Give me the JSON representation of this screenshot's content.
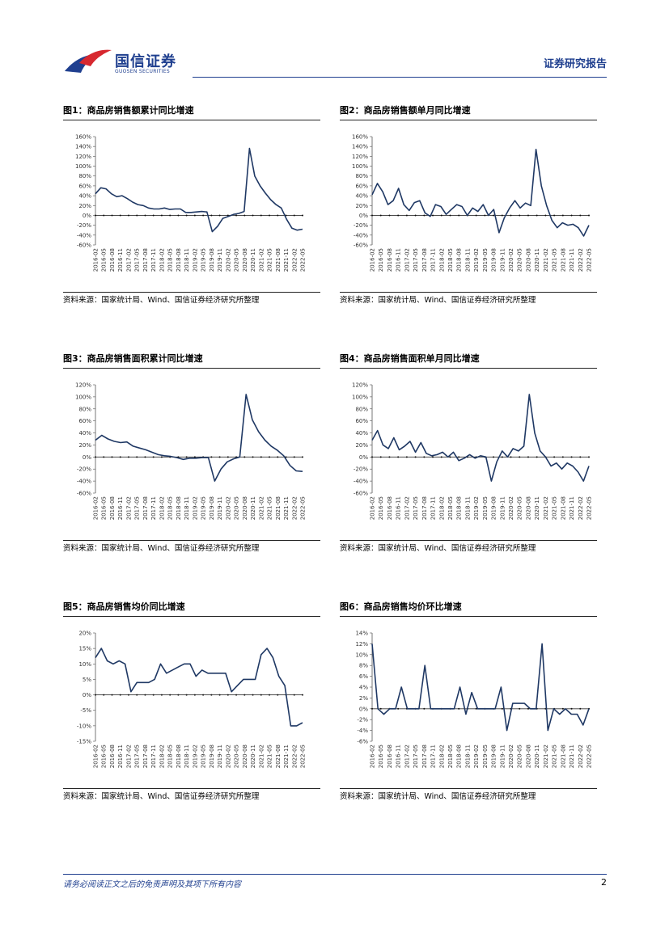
{
  "header": {
    "logo_cn": "国信证券",
    "logo_en": "GUOSEN SECURITIES",
    "report_tag": "证券研究报告"
  },
  "figures": [
    {
      "title": "图1：商品房销售额累计同比增速",
      "source": "资料来源：国家统计局、Wind、国信证券经济研究所整理"
    },
    {
      "title": "图2：商品房销售额单月同比增速",
      "source": "资料来源：国家统计局、Wind、国信证券经济研究所整理"
    },
    {
      "title": "图3：商品房销售面积累计同比增速",
      "source": "资料来源：国家统计局、Wind、国信证券经济研究所整理"
    },
    {
      "title": "图4：商品房销售面积单月同比增速",
      "source": "资料来源：国家统计局、Wind、国信证券经济研究所整理"
    },
    {
      "title": "图5：商品房销售均价同比增速",
      "source": "资料来源：国家统计局、Wind、国信证券经济研究所整理"
    },
    {
      "title": "图6：商品房销售均价环比增速",
      "source": "资料来源：国家统计局、Wind、国信证券经济研究所整理"
    }
  ],
  "footer": {
    "disclaimer": "请务必阅读正文之后的免责声明及其项下所有内容",
    "page": "2"
  },
  "colors": {
    "line": "#1f3864",
    "brand_blue": "#1f3f8f",
    "brand_red": "#d7282f"
  },
  "chart_data": [
    {
      "type": "line",
      "title": "图1：商品房销售额累计同比增速",
      "ylim": [
        -60,
        160
      ],
      "yticks": [
        -60,
        -40,
        -20,
        0,
        20,
        40,
        60,
        80,
        100,
        120,
        140,
        160
      ],
      "yunit": "%",
      "x_labels": [
        "2016-02",
        "2016-05",
        "2016-08",
        "2016-11",
        "2017-02",
        "2017-05",
        "2017-08",
        "2017-11",
        "2018-02",
        "2018-05",
        "2018-08",
        "2018-11",
        "2019-02",
        "2019-05",
        "2019-08",
        "2019-11",
        "2020-02",
        "2020-05",
        "2020-08",
        "2020-11",
        "2021-02",
        "2021-05",
        "2021-08",
        "2021-11",
        "2022-02",
        "2022-05"
      ],
      "series": [
        {
          "name": "销售额累计同比",
          "values": [
            44,
            56,
            54,
            44,
            38,
            40,
            34,
            27,
            22,
            20,
            15,
            13,
            13,
            15,
            12,
            13,
            13,
            6,
            6,
            7,
            8,
            7,
            -33,
            -22,
            -6,
            -2,
            2,
            4,
            8,
            136,
            80,
            60,
            45,
            32,
            22,
            15,
            -8,
            -26,
            -30,
            -28
          ]
        }
      ]
    },
    {
      "type": "line",
      "title": "图2：商品房销售额单月同比增速",
      "ylim": [
        -60,
        160
      ],
      "yticks": [
        -60,
        -40,
        -20,
        0,
        20,
        40,
        60,
        80,
        100,
        120,
        140,
        160
      ],
      "yunit": "%",
      "x_labels": [
        "2016-02",
        "2016-05",
        "2016-08",
        "2016-11",
        "2017-02",
        "2017-05",
        "2017-08",
        "2017-11",
        "2018-02",
        "2018-05",
        "2018-08",
        "2018-11",
        "2019-02",
        "2019-05",
        "2019-08",
        "2019-11",
        "2020-02",
        "2020-05",
        "2020-08",
        "2020-11",
        "2021-02",
        "2021-05",
        "2021-08",
        "2021-11",
        "2022-02",
        "2022-05"
      ],
      "series": [
        {
          "name": "销售额单月同比",
          "values": [
            42,
            65,
            48,
            22,
            30,
            55,
            22,
            10,
            26,
            30,
            5,
            -2,
            22,
            18,
            2,
            12,
            22,
            18,
            0,
            15,
            8,
            22,
            0,
            12,
            -35,
            -5,
            15,
            30,
            15,
            25,
            20,
            134,
            60,
            20,
            -10,
            -25,
            -15,
            -20,
            -18,
            -25,
            -42,
            -20
          ]
        }
      ]
    },
    {
      "type": "line",
      "title": "图3：商品房销售面积累计同比增速",
      "ylim": [
        -60,
        120
      ],
      "yticks": [
        -60,
        -40,
        -20,
        0,
        20,
        40,
        60,
        80,
        100,
        120
      ],
      "yunit": "%",
      "x_labels": [
        "2016-02",
        "2016-05",
        "2016-08",
        "2016-11",
        "2017-02",
        "2017-05",
        "2017-08",
        "2017-11",
        "2018-02",
        "2018-05",
        "2018-08",
        "2018-11",
        "2019-02",
        "2019-05",
        "2019-08",
        "2019-11",
        "2020-02",
        "2020-05",
        "2020-08",
        "2020-11",
        "2021-02",
        "2021-05",
        "2021-08",
        "2021-11",
        "2022-02",
        "2022-05"
      ],
      "series": [
        {
          "name": "销售面积累计同比",
          "values": [
            28,
            36,
            30,
            26,
            24,
            25,
            18,
            15,
            12,
            8,
            4,
            2,
            1,
            -1,
            -4,
            -2,
            -2,
            -1,
            -1,
            -40,
            -20,
            -8,
            -3,
            0,
            104,
            62,
            42,
            28,
            18,
            11,
            2,
            -14,
            -23,
            -24
          ]
        }
      ]
    },
    {
      "type": "line",
      "title": "图4：商品房销售面积单月同比增速",
      "ylim": [
        -60,
        120
      ],
      "yticks": [
        -60,
        -40,
        -20,
        0,
        20,
        40,
        60,
        80,
        100,
        120
      ],
      "yunit": "%",
      "x_labels": [
        "2016-02",
        "2016-05",
        "2016-08",
        "2016-11",
        "2017-02",
        "2017-05",
        "2017-08",
        "2017-11",
        "2018-02",
        "2018-05",
        "2018-08",
        "2018-11",
        "2019-02",
        "2019-05",
        "2019-08",
        "2019-11",
        "2020-02",
        "2020-05",
        "2020-08",
        "2020-11",
        "2021-02",
        "2021-05",
        "2021-08",
        "2021-11",
        "2022-02",
        "2022-05"
      ],
      "series": [
        {
          "name": "销售面积单月同比",
          "values": [
            28,
            44,
            20,
            14,
            32,
            12,
            18,
            26,
            8,
            24,
            6,
            2,
            4,
            8,
            0,
            8,
            -6,
            -2,
            4,
            -2,
            2,
            0,
            -40,
            -8,
            10,
            0,
            14,
            10,
            18,
            104,
            40,
            10,
            0,
            -15,
            -10,
            -20,
            -10,
            -15,
            -25,
            -40,
            -15
          ]
        }
      ]
    },
    {
      "type": "line",
      "title": "图5：商品房销售均价同比增速",
      "ylim": [
        -15,
        20
      ],
      "yticks": [
        -15,
        -10,
        -5,
        0,
        5,
        10,
        15,
        20
      ],
      "yunit": "%",
      "x_labels": [
        "2016-02",
        "2016-05",
        "2016-08",
        "2016-11",
        "2017-02",
        "2017-05",
        "2017-08",
        "2017-11",
        "2018-02",
        "2018-05",
        "2018-08",
        "2018-11",
        "2019-02",
        "2019-05",
        "2019-08",
        "2019-11",
        "2020-02",
        "2020-05",
        "2020-08",
        "2020-11",
        "2021-02",
        "2021-05",
        "2021-08",
        "2021-11",
        "2022-02",
        "2022-05"
      ],
      "series": [
        {
          "name": "均价同比",
          "values": [
            12,
            15,
            11,
            10,
            11,
            10,
            1,
            4,
            4,
            4,
            5,
            10,
            7,
            8,
            9,
            10,
            10,
            6,
            8,
            7,
            7,
            7,
            7,
            1,
            3,
            5,
            5,
            5,
            13,
            15,
            12,
            6,
            3,
            -10,
            -10,
            -9
          ]
        }
      ]
    },
    {
      "type": "line",
      "title": "图6：商品房销售均价环比增速",
      "ylim": [
        -6,
        14
      ],
      "yticks": [
        -6,
        -4,
        -2,
        0,
        2,
        4,
        6,
        8,
        10,
        12,
        14
      ],
      "yunit": "%",
      "x_labels": [
        "2016-02",
        "2016-05",
        "2016-08",
        "2016-11",
        "2017-02",
        "2017-05",
        "2017-08",
        "2017-11",
        "2018-02",
        "2018-05",
        "2018-08",
        "2018-11",
        "2019-02",
        "2019-05",
        "2019-08",
        "2019-11",
        "2020-02",
        "2020-05",
        "2020-08",
        "2020-11",
        "2021-02",
        "2021-05",
        "2021-08",
        "2021-11",
        "2022-02",
        "2022-05"
      ],
      "series": [
        {
          "name": "均价环比",
          "values": [
            12,
            0,
            -1,
            0,
            0,
            4,
            0,
            0,
            0,
            8,
            0,
            0,
            0,
            0,
            0,
            4,
            -1,
            3,
            0,
            0,
            0,
            0,
            4,
            -4,
            1,
            1,
            1,
            0,
            0,
            12,
            -4,
            0,
            -1,
            0,
            -1,
            -1,
            -3,
            0
          ]
        }
      ]
    }
  ]
}
